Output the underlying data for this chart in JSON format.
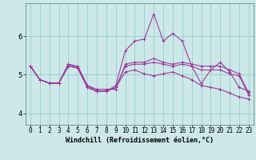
{
  "background_color": "#cce8e8",
  "line_color": "#993399",
  "grid_color": "#99cccc",
  "xlabel": "Windchill (Refroidissement éolien,°C)",
  "xlim": [
    -0.5,
    23.5
  ],
  "ylim": [
    3.7,
    6.85
  ],
  "yticks": [
    4,
    5,
    6
  ],
  "xticks": [
    0,
    1,
    2,
    3,
    4,
    5,
    6,
    7,
    8,
    9,
    10,
    11,
    12,
    13,
    14,
    15,
    16,
    17,
    18,
    19,
    20,
    21,
    22,
    23
  ],
  "series": [
    [
      5.22,
      4.87,
      4.78,
      4.78,
      5.27,
      5.22,
      4.72,
      4.62,
      4.62,
      4.62,
      5.27,
      5.32,
      5.32,
      5.42,
      5.32,
      5.27,
      5.32,
      5.27,
      5.22,
      5.22,
      5.22,
      5.12,
      5.02,
      4.52
    ],
    [
      5.22,
      4.87,
      4.78,
      4.78,
      5.27,
      5.17,
      4.72,
      4.57,
      4.57,
      4.72,
      5.62,
      5.87,
      5.92,
      6.57,
      5.87,
      6.07,
      5.87,
      5.22,
      4.77,
      5.12,
      5.32,
      5.07,
      4.67,
      4.57
    ],
    [
      5.22,
      4.87,
      4.78,
      4.78,
      5.22,
      5.17,
      4.67,
      4.57,
      4.57,
      4.67,
      5.22,
      5.27,
      5.27,
      5.32,
      5.27,
      5.22,
      5.27,
      5.22,
      5.12,
      5.12,
      5.12,
      5.02,
      4.97,
      4.47
    ],
    [
      5.22,
      4.87,
      4.78,
      4.78,
      5.22,
      5.17,
      4.67,
      4.57,
      4.57,
      4.67,
      5.07,
      5.12,
      5.02,
      4.97,
      5.02,
      5.07,
      4.97,
      4.87,
      4.72,
      4.67,
      4.62,
      4.52,
      4.42,
      4.37
    ]
  ],
  "xlabel_fontsize": 6.0,
  "tick_fontsize": 5.5,
  "ytick_fontsize": 6.5
}
